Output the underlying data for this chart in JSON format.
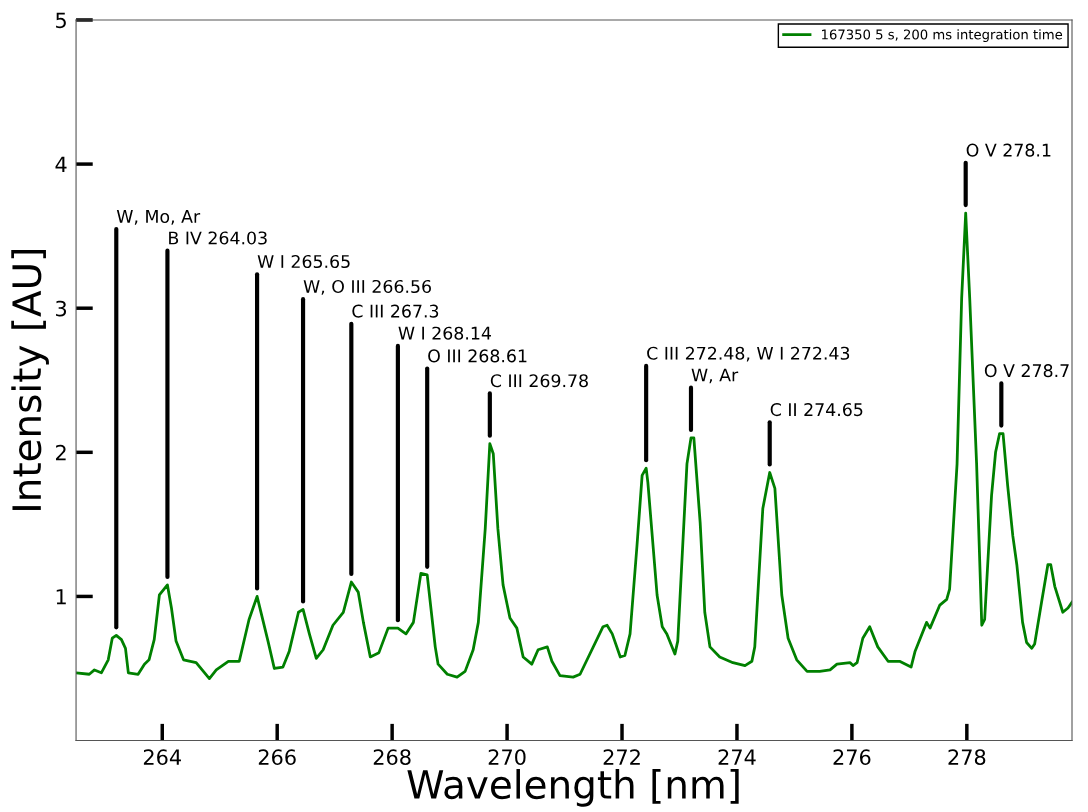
{
  "chart_data": {
    "type": "line",
    "xlabel": "Wavelength [nm]",
    "ylabel": "Intensity [AU]",
    "xlim": [
      262.5,
      279.83
    ],
    "xticks": [
      264,
      266,
      268,
      270,
      272,
      274,
      276,
      278
    ],
    "ylim": [
      0,
      5
    ],
    "yticks": [
      1,
      2,
      3,
      4,
      5
    ],
    "grid": false,
    "legend": "top right",
    "marker": "none",
    "line_style": "solid",
    "series": [
      {
        "name": "167350 5 s, 200 ms integration time",
        "color": "#008000",
        "x": [
          262.5,
          262.73,
          262.82,
          262.94,
          263.06,
          263.13,
          263.2,
          263.29,
          263.36,
          263.41,
          263.58,
          263.69,
          263.77,
          263.86,
          263.95,
          264.09,
          264.16,
          264.24,
          264.37,
          264.59,
          264.82,
          264.94,
          265.15,
          265.34,
          265.51,
          265.65,
          265.84,
          265.95,
          266.1,
          266.21,
          266.37,
          266.45,
          266.56,
          266.68,
          266.8,
          266.97,
          267.15,
          267.29,
          267.41,
          267.5,
          267.62,
          267.77,
          267.93,
          268.1,
          268.24,
          268.37,
          268.5,
          268.61,
          268.75,
          268.8,
          268.96,
          269.13,
          269.27,
          269.41,
          269.5,
          269.62,
          269.7,
          269.76,
          269.84,
          269.93,
          270.05,
          270.17,
          270.28,
          270.43,
          270.54,
          270.7,
          270.78,
          270.92,
          271.15,
          271.27,
          271.67,
          271.74,
          271.83,
          271.97,
          272.05,
          272.14,
          272.26,
          272.35,
          272.42,
          272.45,
          272.61,
          272.7,
          272.78,
          272.92,
          272.97,
          273.13,
          273.2,
          273.25,
          273.36,
          273.44,
          273.53,
          273.7,
          273.93,
          274.14,
          274.26,
          274.31,
          274.45,
          274.57,
          274.66,
          274.78,
          274.89,
          275.04,
          275.22,
          275.44,
          275.62,
          275.74,
          275.97,
          276.02,
          276.09,
          276.19,
          276.31,
          276.45,
          276.63,
          276.83,
          277.03,
          277.1,
          277.3,
          277.36,
          277.53,
          277.65,
          277.7,
          277.83,
          277.91,
          277.98,
          278.05,
          278.17,
          278.26,
          278.31,
          278.43,
          278.5,
          278.57,
          278.63,
          278.71,
          278.8,
          278.87,
          278.97,
          279.04,
          279.13,
          279.18,
          279.3,
          279.41,
          279.46,
          279.53,
          279.67,
          279.76,
          279.83
        ],
        "values": [
          0.47,
          0.46,
          0.49,
          0.47,
          0.56,
          0.71,
          0.73,
          0.7,
          0.64,
          0.47,
          0.46,
          0.53,
          0.56,
          0.7,
          1.01,
          1.08,
          0.92,
          0.69,
          0.56,
          0.54,
          0.43,
          0.49,
          0.55,
          0.55,
          0.84,
          1.0,
          0.69,
          0.5,
          0.51,
          0.62,
          0.89,
          0.91,
          0.74,
          0.57,
          0.63,
          0.8,
          0.89,
          1.1,
          1.03,
          0.82,
          0.58,
          0.61,
          0.78,
          0.78,
          0.74,
          0.82,
          1.16,
          1.15,
          0.65,
          0.53,
          0.46,
          0.44,
          0.48,
          0.63,
          0.82,
          1.47,
          2.06,
          1.99,
          1.47,
          1.08,
          0.85,
          0.78,
          0.58,
          0.53,
          0.63,
          0.65,
          0.55,
          0.45,
          0.44,
          0.46,
          0.79,
          0.8,
          0.74,
          0.58,
          0.59,
          0.74,
          1.35,
          1.84,
          1.89,
          1.79,
          1.01,
          0.79,
          0.74,
          0.6,
          0.69,
          1.92,
          2.1,
          2.1,
          1.51,
          0.89,
          0.65,
          0.58,
          0.54,
          0.52,
          0.55,
          0.65,
          1.61,
          1.86,
          1.75,
          1.01,
          0.71,
          0.56,
          0.48,
          0.48,
          0.49,
          0.53,
          0.54,
          0.52,
          0.54,
          0.71,
          0.79,
          0.65,
          0.55,
          0.55,
          0.51,
          0.62,
          0.82,
          0.78,
          0.94,
          0.98,
          1.05,
          1.92,
          3.07,
          3.66,
          3.07,
          1.92,
          0.8,
          0.84,
          1.7,
          2.0,
          2.13,
          2.13,
          1.77,
          1.42,
          1.22,
          0.82,
          0.68,
          0.64,
          0.67,
          0.96,
          1.22,
          1.22,
          1.07,
          0.89,
          0.92,
          0.96
        ]
      }
    ],
    "annotations": [
      {
        "text": "W, Mo, Ar",
        "x": 263.2,
        "y": 0.73
      },
      {
        "text": "B IV 264.03",
        "x": 264.09,
        "y": 1.08
      },
      {
        "text": "W I 265.65",
        "x": 265.65,
        "y": 1.0
      },
      {
        "text": "W, O III 266.56",
        "x": 266.45,
        "y": 0.91
      },
      {
        "text": "C III 267.3",
        "x": 267.29,
        "y": 1.1
      },
      {
        "text": "W I 268.14",
        "x": 268.1,
        "y": 0.78
      },
      {
        "text": "O III 268.61",
        "x": 268.61,
        "y": 1.15
      },
      {
        "text": "C III 269.78",
        "x": 269.7,
        "y": 2.06
      },
      {
        "text": "C III 272.48, W I 272.43",
        "x": 272.42,
        "y": 1.89
      },
      {
        "text": "W, Ar",
        "x": 273.2,
        "y": 2.1
      },
      {
        "text": "C II 274.65",
        "x": 274.57,
        "y": 1.86
      },
      {
        "text": "O V 278.1",
        "x": 277.98,
        "y": 3.66
      },
      {
        "text": "O V 278.7",
        "x": 278.6,
        "y": 2.13
      }
    ]
  }
}
